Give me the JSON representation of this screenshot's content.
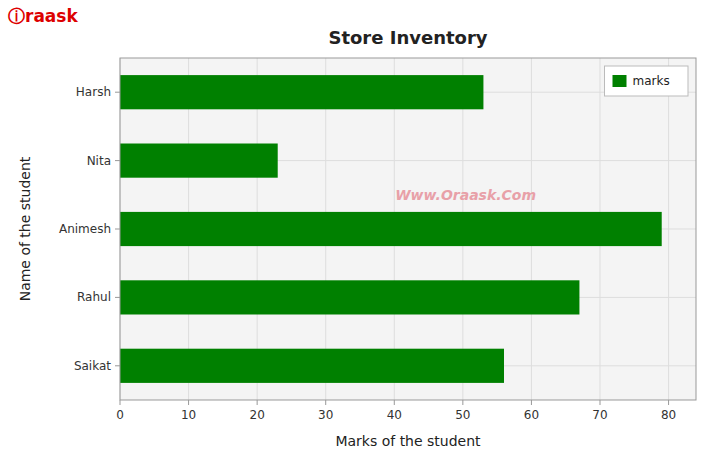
{
  "chart_data": {
    "type": "bar",
    "orientation": "horizontal",
    "title": "Store Inventory",
    "x_label": "Marks of the student",
    "y_label": "Name of the student",
    "categories": [
      "Saikat",
      "Rahul",
      "Animesh",
      "Nita",
      "Harsh"
    ],
    "series": [
      {
        "name": "marks",
        "color": "#008000",
        "values": [
          56,
          67,
          79,
          23,
          53
        ]
      }
    ],
    "xlim": [
      0,
      84
    ],
    "xticks": [
      0,
      10,
      20,
      30,
      40,
      50,
      60,
      70,
      80
    ],
    "grid": true,
    "legend": "upper right",
    "annotations": [
      {
        "text": "Www.Oraask.Com",
        "color": "#e8a0a8"
      },
      {
        "text": "ⓘraask",
        "color": "#dd0000"
      }
    ]
  }
}
